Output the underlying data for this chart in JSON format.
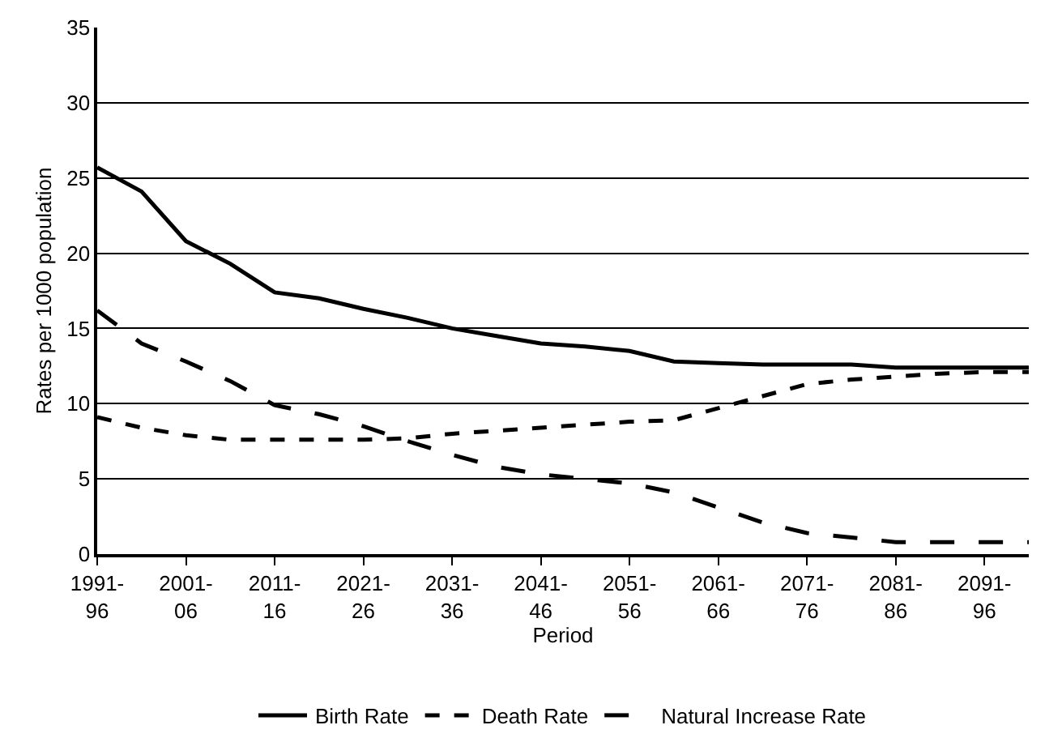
{
  "chart_data": {
    "type": "line",
    "xlabel": "Period",
    "ylabel": "Rates per 1000 population",
    "categories": [
      "1991-\n96",
      null,
      "2001-\n06",
      null,
      "2011-\n16",
      null,
      "2021-\n26",
      null,
      "2031-\n36",
      null,
      "2041-\n46",
      null,
      "2051-\n56",
      null,
      "2061-\n66",
      null,
      "2071-\n76",
      null,
      "2081-\n86",
      null,
      "2091-\n96",
      null
    ],
    "series": [
      {
        "name": "Birth Rate",
        "color": "#000000",
        "line_style": "solid",
        "values": [
          25.7,
          24.1,
          20.8,
          19.3,
          17.4,
          17.0,
          16.3,
          15.7,
          15.0,
          14.5,
          14.0,
          13.8,
          13.5,
          12.8,
          12.7,
          12.6,
          12.6,
          12.6,
          12.4,
          12.4,
          12.4,
          12.4
        ]
      },
      {
        "name": "Death Rate",
        "color": "#000000",
        "line_style": "dotted",
        "values": [
          9.1,
          8.4,
          7.9,
          7.6,
          7.6,
          7.6,
          7.6,
          7.7,
          8.0,
          8.2,
          8.4,
          8.6,
          8.8,
          8.9,
          9.7,
          10.5,
          11.3,
          11.6,
          11.8,
          12.0,
          12.1,
          12.1
        ]
      },
      {
        "name": "Natural Increase Rate",
        "color": "#000000",
        "line_style": "dashed",
        "values": [
          16.2,
          14.0,
          12.8,
          11.5,
          9.9,
          9.3,
          8.5,
          7.5,
          6.6,
          5.8,
          5.3,
          5.0,
          4.7,
          4.1,
          3.1,
          2.1,
          1.4,
          1.1,
          0.8,
          0.8,
          0.8,
          0.8
        ]
      }
    ],
    "ylim": [
      0,
      35
    ],
    "yticks": [
      0,
      5,
      10,
      15,
      20,
      25,
      30,
      35
    ],
    "grid": "y",
    "legend": "bottom",
    "marker": "none"
  }
}
